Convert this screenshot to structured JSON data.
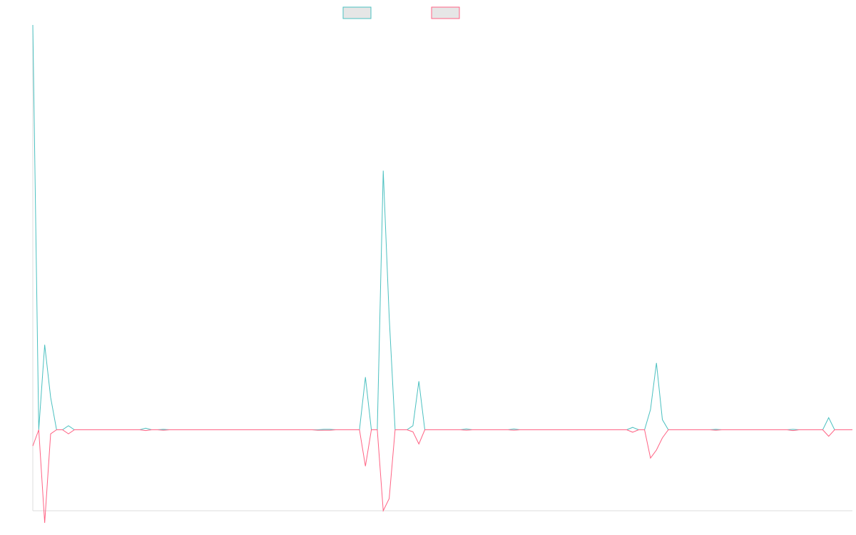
{
  "colors": {
    "series_a": "#4bc0c0",
    "series_b": "#ff6384",
    "legend_fill": "#e6e6e6",
    "axis": "#dddddd"
  },
  "chart_data": {
    "type": "line",
    "title": "",
    "xlabel": "",
    "ylabel": "",
    "grid": false,
    "legend": "top",
    "x_count": 139,
    "ylim": [
      -0.2,
      1.0
    ],
    "series": [
      {
        "values": [
          1.0,
          0.0,
          0.21,
          0.08,
          0.0,
          0.0,
          0.01,
          0.0,
          0.0,
          0.0,
          0.0,
          0.0,
          0.0,
          0.0,
          0.0,
          0.0,
          0.0,
          0.0,
          0.0,
          0.004,
          0.0,
          0.0,
          0.001,
          0.0,
          0.0,
          0.0,
          0.0,
          0.0,
          0.0,
          0.0,
          0.0,
          0.0,
          0.0,
          0.0,
          0.0,
          0.0,
          0.0,
          0.0,
          0.0,
          0.0,
          0.0,
          0.0,
          0.0,
          0.0,
          0.0,
          0.0,
          0.0,
          0.0,
          0.0,
          0.001,
          0.001,
          0.0,
          0.0,
          0.0,
          0.0,
          0.0,
          0.13,
          0.0,
          0.0,
          0.64,
          0.28,
          0.0,
          0.0,
          0.0,
          0.01,
          0.12,
          0.0,
          0.0,
          0.0,
          0.0,
          0.0,
          0.0,
          0.0,
          0.002,
          0.0,
          0.0,
          0.0,
          0.0,
          0.0,
          0.0,
          0.0,
          0.002,
          0.0,
          0.0,
          0.0,
          0.0,
          0.0,
          0.0,
          0.0,
          0.0,
          0.0,
          0.0,
          0.0,
          0.0,
          0.0,
          0.0,
          0.0,
          0.0,
          0.0,
          0.0,
          0.0,
          0.006,
          0.0,
          0.0,
          0.05,
          0.165,
          0.025,
          0.0,
          0.0,
          0.0,
          0.0,
          0.0,
          0.0,
          0.0,
          0.0,
          0.001,
          0.0,
          0.0,
          0.0,
          0.0,
          0.0,
          0.0,
          0.0,
          0.0,
          0.0,
          0.0,
          0.0,
          0.0,
          0.001,
          0.0,
          0.0,
          0.0,
          0.0,
          0.0,
          0.03,
          0.0,
          0.0,
          0.0,
          0.0
        ]
      },
      {
        "values": [
          -0.04,
          0.0,
          -0.23,
          -0.01,
          0.0,
          0.0,
          -0.01,
          0.0,
          0.0,
          0.0,
          0.0,
          0.0,
          0.0,
          0.0,
          0.0,
          0.0,
          0.0,
          0.0,
          0.0,
          -0.002,
          0.0,
          0.0,
          -0.001,
          0.0,
          0.0,
          0.0,
          0.0,
          0.0,
          0.0,
          0.0,
          0.0,
          0.0,
          0.0,
          0.0,
          0.0,
          0.0,
          0.0,
          0.0,
          0.0,
          0.0,
          0.0,
          0.0,
          0.0,
          0.0,
          0.0,
          0.0,
          0.0,
          0.0,
          -0.001,
          -0.001,
          -0.001,
          0.0,
          0.0,
          0.0,
          0.0,
          0.0,
          -0.09,
          0.0,
          0.0,
          -0.2,
          -0.17,
          0.0,
          0.0,
          0.0,
          -0.005,
          -0.035,
          0.0,
          0.0,
          0.0,
          0.0,
          0.0,
          0.0,
          0.0,
          -0.001,
          0.0,
          0.0,
          0.0,
          0.0,
          0.0,
          0.0,
          0.0,
          -0.001,
          0.0,
          0.0,
          0.0,
          0.0,
          0.0,
          0.0,
          0.0,
          0.0,
          0.0,
          0.0,
          0.0,
          0.0,
          0.0,
          0.0,
          0.0,
          0.0,
          0.0,
          0.0,
          0.0,
          -0.006,
          0.0,
          0.0,
          -0.07,
          -0.05,
          -0.02,
          0.0,
          0.0,
          0.0,
          0.0,
          0.0,
          0.0,
          0.0,
          0.0,
          -0.001,
          0.0,
          0.0,
          0.0,
          0.0,
          0.0,
          0.0,
          0.0,
          0.0,
          0.0,
          0.0,
          0.0,
          0.0,
          -0.002,
          0.0,
          0.0,
          0.0,
          0.0,
          0.0,
          -0.016,
          0.0,
          0.0,
          0.0,
          0.0
        ]
      }
    ]
  }
}
